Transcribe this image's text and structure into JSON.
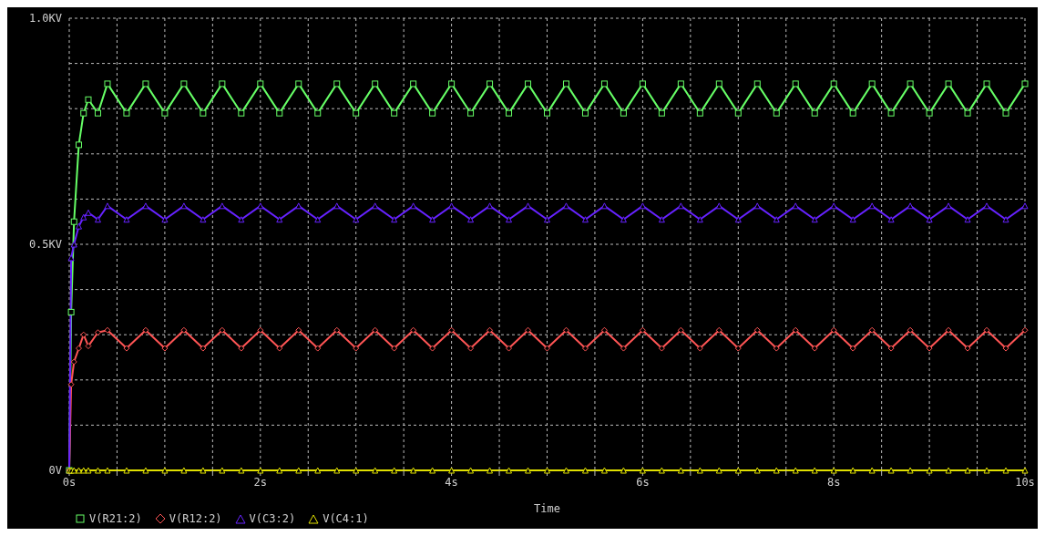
{
  "chart_data": {
    "type": "line",
    "xlabel": "Time",
    "x": [
      0,
      0.02,
      0.05,
      0.1,
      0.15,
      0.2,
      0.3,
      0.4,
      0.6,
      0.8,
      1.0,
      1.2,
      1.4,
      1.6,
      1.8,
      2.0,
      2.2,
      2.4,
      2.6,
      2.8,
      3.0,
      3.2,
      3.4,
      3.6,
      3.8,
      4.0,
      4.2,
      4.4,
      4.6,
      4.8,
      5.0,
      5.2,
      5.4,
      5.6,
      5.8,
      6.0,
      6.2,
      6.4,
      6.6,
      6.8,
      7.0,
      7.2,
      7.4,
      7.6,
      7.8,
      8.0,
      8.2,
      8.4,
      8.6,
      8.8,
      9.0,
      9.2,
      9.4,
      9.6,
      9.8,
      10.0
    ],
    "series": [
      {
        "name": "V(R21:2)",
        "color": "#66ff66",
        "marker": "square",
        "values": [
          0,
          0.35,
          0.55,
          0.72,
          0.79,
          0.82,
          0.79,
          0.855,
          0.79,
          0.855,
          0.79,
          0.855,
          0.79,
          0.855,
          0.79,
          0.855,
          0.79,
          0.855,
          0.79,
          0.855,
          0.79,
          0.855,
          0.79,
          0.855,
          0.79,
          0.855,
          0.79,
          0.855,
          0.79,
          0.855,
          0.79,
          0.855,
          0.79,
          0.855,
          0.79,
          0.855,
          0.79,
          0.855,
          0.79,
          0.855,
          0.79,
          0.855,
          0.79,
          0.855,
          0.79,
          0.855,
          0.79,
          0.855,
          0.79,
          0.855,
          0.79,
          0.855,
          0.79,
          0.855,
          0.79,
          0.855
        ]
      },
      {
        "name": "V(R12:2)",
        "color": "#ff5555",
        "marker": "diamond",
        "values": [
          0,
          0.19,
          0.24,
          0.27,
          0.3,
          0.275,
          0.305,
          0.31,
          0.27,
          0.31,
          0.27,
          0.31,
          0.27,
          0.31,
          0.27,
          0.31,
          0.27,
          0.31,
          0.27,
          0.31,
          0.27,
          0.31,
          0.27,
          0.31,
          0.27,
          0.31,
          0.27,
          0.31,
          0.27,
          0.31,
          0.27,
          0.31,
          0.27,
          0.31,
          0.27,
          0.31,
          0.27,
          0.31,
          0.27,
          0.31,
          0.27,
          0.31,
          0.27,
          0.31,
          0.27,
          0.31,
          0.27,
          0.31,
          0.27,
          0.31,
          0.27,
          0.31,
          0.27,
          0.31,
          0.27,
          0.31
        ]
      },
      {
        "name": "V(C3:2)",
        "color": "#6622ff",
        "marker": "triangle",
        "values": [
          0,
          0.47,
          0.5,
          0.54,
          0.56,
          0.57,
          0.555,
          0.585,
          0.555,
          0.585,
          0.555,
          0.585,
          0.555,
          0.585,
          0.555,
          0.585,
          0.555,
          0.585,
          0.555,
          0.585,
          0.555,
          0.585,
          0.555,
          0.585,
          0.555,
          0.585,
          0.555,
          0.585,
          0.555,
          0.585,
          0.555,
          0.585,
          0.555,
          0.585,
          0.555,
          0.585,
          0.555,
          0.585,
          0.555,
          0.585,
          0.555,
          0.585,
          0.555,
          0.585,
          0.555,
          0.585,
          0.555,
          0.585,
          0.555,
          0.585,
          0.555,
          0.585,
          0.555,
          0.585,
          0.555,
          0.585
        ]
      },
      {
        "name": "V(C4:1)",
        "color": "#e0e000",
        "marker": "triangle",
        "values": [
          0,
          0,
          0,
          0,
          0,
          0,
          0,
          0,
          0,
          0,
          0,
          0,
          0,
          0,
          0,
          0,
          0,
          0,
          0,
          0,
          0,
          0,
          0,
          0,
          0,
          0,
          0,
          0,
          0,
          0,
          0,
          0,
          0,
          0,
          0,
          0,
          0,
          0,
          0,
          0,
          0,
          0,
          0,
          0,
          0,
          0,
          0,
          0,
          0,
          0,
          0,
          0,
          0,
          0,
          0,
          0
        ]
      }
    ],
    "xlim": [
      0,
      10
    ],
    "xticks": [
      {
        "value": 0,
        "label": "0s"
      },
      {
        "value": 0.5,
        "label": null
      },
      {
        "value": 1,
        "label": null
      },
      {
        "value": 1.5,
        "label": null
      },
      {
        "value": 2,
        "label": "2s"
      },
      {
        "value": 2.5,
        "label": null
      },
      {
        "value": 3,
        "label": null
      },
      {
        "value": 3.5,
        "label": null
      },
      {
        "value": 4,
        "label": "4s"
      },
      {
        "value": 4.5,
        "label": null
      },
      {
        "value": 5,
        "label": null
      },
      {
        "value": 5.5,
        "label": null
      },
      {
        "value": 6,
        "label": "6s"
      },
      {
        "value": 6.5,
        "label": null
      },
      {
        "value": 7,
        "label": null
      },
      {
        "value": 7.5,
        "label": null
      },
      {
        "value": 8,
        "label": "8s"
      },
      {
        "value": 8.5,
        "label": null
      },
      {
        "value": 9,
        "label": null
      },
      {
        "value": 9.5,
        "label": null
      },
      {
        "value": 10,
        "label": "10s"
      }
    ],
    "ylim": [
      0,
      1.0
    ],
    "yticks": [
      {
        "value": 0,
        "label": "0V"
      },
      {
        "value": 0.1,
        "label": null
      },
      {
        "value": 0.2,
        "label": null
      },
      {
        "value": 0.3,
        "label": null
      },
      {
        "value": 0.4,
        "label": null
      },
      {
        "value": 0.5,
        "label": "0.5KV"
      },
      {
        "value": 0.6,
        "label": null
      },
      {
        "value": 0.7,
        "label": null
      },
      {
        "value": 0.8,
        "label": null
      },
      {
        "value": 0.9,
        "label": null
      },
      {
        "value": 1.0,
        "label": "1.0KV"
      }
    ],
    "grid": true,
    "legend": "bottom left"
  }
}
